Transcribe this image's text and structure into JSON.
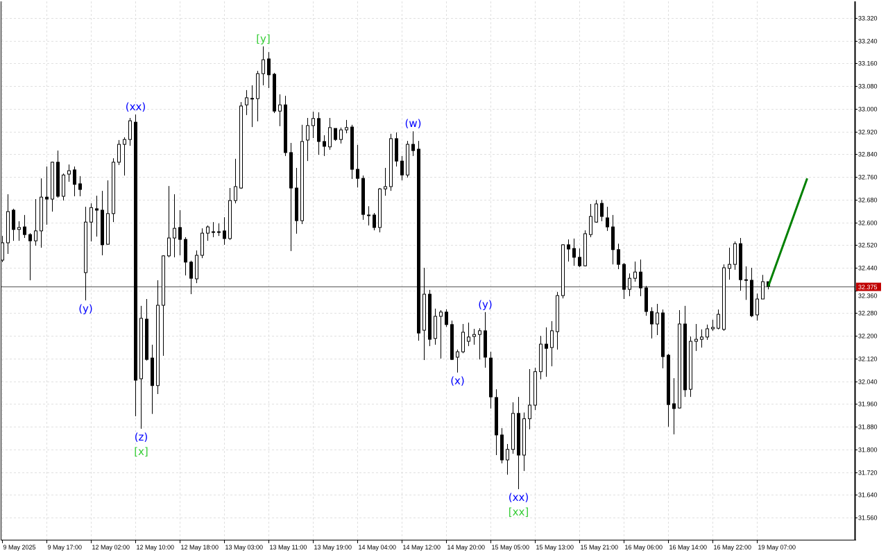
{
  "chart_data": {
    "type": "candlestick",
    "title": "",
    "ylim": [
      31.52,
      33.34
    ],
    "grid": true,
    "y_ticks": [
      "33.320",
      "33.240",
      "33.160",
      "33.080",
      "33.000",
      "32.920",
      "32.840",
      "32.760",
      "32.680",
      "32.600",
      "32.520",
      "32.440",
      "32.360",
      "32.280",
      "32.200",
      "32.120",
      "32.040",
      "31.960",
      "31.880",
      "31.800",
      "31.720",
      "31.640",
      "31.560"
    ],
    "x_tick_every_candles": 8,
    "x_ticks": [
      "9 May 2025",
      "9 May 17:00",
      "12 May 02:00",
      "12 May 10:00",
      "12 May 18:00",
      "13 May 03:00",
      "13 May 11:00",
      "13 May 19:00",
      "14 May 04:00",
      "14 May 12:00",
      "14 May 20:00",
      "15 May 05:00",
      "15 May 13:00",
      "15 May 21:00",
      "16 May 06:00",
      "16 May 14:00",
      "16 May 22:00",
      "19 May 07:00"
    ],
    "ohlc_fields": [
      "open",
      "high",
      "low",
      "close"
    ],
    "candles": [
      [
        32.467,
        32.552,
        32.46,
        32.528
      ],
      [
        32.528,
        32.699,
        32.489,
        32.638
      ],
      [
        32.643,
        32.648,
        32.535,
        32.575
      ],
      [
        32.575,
        32.604,
        32.535,
        32.582
      ],
      [
        32.584,
        32.626,
        32.545,
        32.557
      ],
      [
        32.557,
        32.562,
        32.396,
        32.535
      ],
      [
        32.535,
        32.682,
        32.518,
        32.57
      ],
      [
        32.57,
        32.755,
        32.511,
        32.689
      ],
      [
        32.689,
        32.797,
        32.592,
        32.682
      ],
      [
        32.682,
        32.814,
        32.638,
        32.812
      ],
      [
        32.812,
        32.853,
        32.687,
        32.692
      ],
      [
        32.692,
        32.772,
        32.677,
        32.767
      ],
      [
        32.77,
        32.804,
        32.743,
        32.782
      ],
      [
        32.785,
        32.797,
        32.692,
        32.734
      ],
      [
        32.736,
        32.763,
        32.692,
        32.716
      ],
      [
        32.423,
        32.655,
        32.325,
        32.601
      ],
      [
        32.601,
        32.667,
        32.533,
        32.652
      ],
      [
        32.648,
        32.694,
        32.55,
        32.643
      ],
      [
        32.643,
        32.711,
        32.484,
        32.521
      ],
      [
        32.523,
        32.748,
        32.521,
        32.631
      ],
      [
        32.631,
        32.826,
        32.601,
        32.812
      ],
      [
        32.812,
        32.89,
        32.802,
        32.875
      ],
      [
        32.875,
        32.9,
        32.765,
        32.892
      ],
      [
        32.892,
        32.968,
        32.87,
        32.958
      ],
      [
        32.953,
        32.98,
        31.917,
        32.044
      ],
      [
        32.049,
        32.306,
        31.873,
        32.262
      ],
      [
        32.259,
        32.33,
        32.113,
        32.117
      ],
      [
        32.122,
        32.169,
        31.925,
        32.025
      ],
      [
        32.025,
        32.396,
        31.995,
        32.308
      ],
      [
        32.308,
        32.484,
        32.13,
        32.482
      ],
      [
        32.482,
        32.728,
        32.477,
        32.545
      ],
      [
        32.545,
        32.699,
        32.477,
        32.579
      ],
      [
        32.582,
        32.643,
        32.484,
        32.54
      ],
      [
        32.54,
        32.548,
        32.413,
        32.46
      ],
      [
        32.46,
        32.465,
        32.347,
        32.403
      ],
      [
        32.401,
        32.501,
        32.386,
        32.484
      ],
      [
        32.484,
        32.579,
        32.474,
        32.562
      ],
      [
        32.562,
        32.589,
        32.535,
        32.584
      ],
      [
        32.567,
        32.601,
        32.548,
        32.567
      ],
      [
        32.567,
        32.596,
        32.552,
        32.567
      ],
      [
        32.57,
        32.618,
        32.521,
        32.543
      ],
      [
        32.543,
        32.721,
        32.538,
        32.677
      ],
      [
        32.677,
        32.824,
        32.667,
        32.726
      ],
      [
        32.721,
        33.024,
        32.718,
        33.01
      ],
      [
        33.014,
        33.066,
        32.978,
        33.039
      ],
      [
        33.036,
        33.083,
        32.936,
        33.037
      ],
      [
        33.036,
        33.134,
        32.956,
        33.124
      ],
      [
        33.124,
        33.22,
        33.083,
        33.173
      ],
      [
        33.176,
        33.2,
        33.073,
        33.12
      ],
      [
        33.122,
        33.127,
        32.985,
        32.992
      ],
      [
        32.992,
        33.051,
        32.939,
        33.014
      ],
      [
        33.014,
        33.046,
        32.834,
        32.846
      ],
      [
        32.846,
        32.88,
        32.499,
        32.721
      ],
      [
        32.721,
        32.792,
        32.56,
        32.606
      ],
      [
        32.606,
        32.944,
        32.594,
        32.885
      ],
      [
        32.89,
        32.968,
        32.816,
        32.941
      ],
      [
        32.941,
        32.99,
        32.897,
        32.966
      ],
      [
        32.966,
        32.988,
        32.838,
        32.885
      ],
      [
        32.885,
        32.907,
        32.834,
        32.868
      ],
      [
        32.866,
        32.968,
        32.856,
        32.934
      ],
      [
        32.931,
        32.931,
        32.887,
        32.892
      ],
      [
        32.892,
        32.934,
        32.878,
        32.926
      ],
      [
        32.926,
        32.961,
        32.914,
        32.934
      ],
      [
        32.936,
        32.944,
        32.753,
        32.787
      ],
      [
        32.787,
        32.873,
        32.723,
        32.755
      ],
      [
        32.755,
        32.765,
        32.609,
        32.628
      ],
      [
        32.626,
        32.657,
        32.589,
        32.626
      ],
      [
        32.626,
        32.633,
        32.572,
        32.582
      ],
      [
        32.582,
        32.721,
        32.565,
        32.718
      ],
      [
        32.718,
        32.792,
        32.694,
        32.726
      ],
      [
        32.726,
        32.912,
        32.711,
        32.895
      ],
      [
        32.895,
        32.917,
        32.797,
        32.816
      ],
      [
        32.816,
        32.834,
        32.748,
        32.767
      ],
      [
        32.767,
        32.887,
        32.758,
        32.875
      ],
      [
        32.875,
        32.921,
        32.834,
        32.853
      ],
      [
        32.858,
        32.887,
        32.183,
        32.21
      ],
      [
        32.22,
        32.44,
        32.115,
        32.347
      ],
      [
        32.347,
        32.362,
        32.164,
        32.188
      ],
      [
        32.191,
        32.296,
        32.169,
        32.269
      ],
      [
        32.269,
        32.291,
        32.12,
        32.284
      ],
      [
        32.284,
        32.294,
        32.232,
        32.24
      ],
      [
        32.24,
        32.254,
        32.115,
        32.117
      ],
      [
        32.125,
        32.152,
        32.071,
        32.144
      ],
      [
        32.144,
        32.242,
        32.139,
        32.213
      ],
      [
        32.181,
        32.247,
        32.164,
        32.196
      ],
      [
        32.198,
        32.225,
        32.169,
        32.205
      ],
      [
        32.205,
        32.227,
        32.117,
        32.218
      ],
      [
        32.218,
        32.284,
        32.088,
        32.125
      ],
      [
        32.122,
        32.144,
        31.944,
        31.985
      ],
      [
        31.983,
        32.012,
        31.78,
        31.851
      ],
      [
        31.851,
        31.875,
        31.751,
        31.763
      ],
      [
        31.763,
        31.819,
        31.711,
        31.8
      ],
      [
        31.8,
        31.966,
        31.785,
        31.927
      ],
      [
        31.927,
        31.985,
        31.66,
        31.78
      ],
      [
        31.78,
        31.93,
        31.724,
        31.908
      ],
      [
        31.908,
        32.083,
        31.871,
        31.956
      ],
      [
        31.956,
        32.088,
        31.939,
        32.074
      ],
      [
        32.074,
        32.2,
        32.047,
        32.171
      ],
      [
        32.171,
        32.23,
        32.056,
        32.156
      ],
      [
        32.159,
        32.252,
        32.093,
        32.218
      ],
      [
        32.215,
        32.355,
        32.152,
        32.342
      ],
      [
        32.342,
        32.523,
        32.332,
        32.521
      ],
      [
        32.521,
        32.54,
        32.462,
        32.506
      ],
      [
        32.508,
        32.543,
        32.447,
        32.477
      ],
      [
        32.477,
        32.508,
        32.442,
        32.447
      ],
      [
        32.447,
        32.572,
        32.445,
        32.56
      ],
      [
        32.557,
        32.665,
        32.548,
        32.621
      ],
      [
        32.601,
        32.679,
        32.599,
        32.665
      ],
      [
        32.667,
        32.679,
        32.604,
        32.621
      ],
      [
        32.616,
        32.655,
        32.57,
        32.584
      ],
      [
        32.584,
        32.626,
        32.452,
        32.504
      ],
      [
        32.504,
        32.525,
        32.435,
        32.452
      ],
      [
        32.452,
        32.457,
        32.33,
        32.364
      ],
      [
        32.364,
        32.42,
        32.34,
        32.403
      ],
      [
        32.403,
        32.462,
        32.391,
        32.425
      ],
      [
        32.425,
        32.469,
        32.34,
        32.369
      ],
      [
        32.369,
        32.376,
        32.271,
        32.286
      ],
      [
        32.286,
        32.301,
        32.191,
        32.242
      ],
      [
        32.242,
        32.313,
        32.203,
        32.281
      ],
      [
        32.281,
        32.293,
        32.086,
        32.127
      ],
      [
        32.132,
        32.137,
        31.88,
        31.958
      ],
      [
        31.961,
        32.051,
        31.853,
        31.944
      ],
      [
        31.946,
        32.291,
        31.944,
        32.242
      ],
      [
        32.242,
        32.306,
        31.985,
        32.01
      ],
      [
        32.012,
        32.198,
        31.985,
        32.181
      ],
      [
        32.181,
        32.242,
        32.147,
        32.188
      ],
      [
        32.188,
        32.223,
        32.159,
        32.196
      ],
      [
        32.196,
        32.24,
        32.186,
        32.225
      ],
      [
        32.225,
        32.257,
        32.218,
        32.23
      ],
      [
        32.227,
        32.293,
        32.223,
        32.276
      ],
      [
        32.223,
        32.452,
        32.218,
        32.44
      ],
      [
        32.438,
        32.511,
        32.398,
        32.452
      ],
      [
        32.452,
        32.533,
        32.433,
        32.525
      ],
      [
        32.525,
        32.545,
        32.359,
        32.398
      ],
      [
        32.398,
        32.445,
        32.327,
        32.396
      ],
      [
        32.396,
        32.44,
        32.266,
        32.271
      ],
      [
        32.274,
        32.349,
        32.254,
        32.33
      ],
      [
        32.33,
        32.415,
        32.33,
        32.391
      ],
      [
        32.391,
        32.391,
        32.364,
        32.375
      ]
    ],
    "current_price": {
      "value": "32.375",
      "color": "#c00000"
    },
    "annotations": [
      {
        "text": "(y)",
        "candle": 15,
        "position": "below",
        "level": 1,
        "color": "#0000ff"
      },
      {
        "text": "(xx)",
        "candle": 24,
        "position": "above",
        "level": 1,
        "color": "#0000ff"
      },
      {
        "text": "(z)",
        "candle": 25,
        "position": "below",
        "level": 1,
        "color": "#0000ff"
      },
      {
        "text": "[x]",
        "candle": 25,
        "position": "below",
        "level": 2,
        "color": "#33cc33"
      },
      {
        "text": "[y]",
        "candle": 47,
        "position": "above",
        "level": 1,
        "color": "#33cc33"
      },
      {
        "text": "(w)",
        "candle": 74,
        "position": "above",
        "level": 1,
        "color": "#0000ff"
      },
      {
        "text": "(x)",
        "candle": 82,
        "position": "below",
        "level": 1,
        "color": "#0000ff"
      },
      {
        "text": "(y)",
        "candle": 87,
        "position": "above",
        "level": 1,
        "color": "#0000ff"
      },
      {
        "text": "(xx)",
        "candle": 93,
        "position": "below",
        "level": 1,
        "color": "#0000ff"
      },
      {
        "text": "[xx]",
        "candle": 93,
        "position": "below",
        "level": 2,
        "color": "#33cc33"
      }
    ],
    "forecast": {
      "from_candle": 138,
      "to_candle": 145,
      "from": 32.375,
      "to": 32.755,
      "color": "#008000"
    },
    "colors": {
      "bull_body": "#ffffff",
      "bear_body": "#000000",
      "outline": "#000000",
      "grid": "#e0e0e0"
    }
  }
}
